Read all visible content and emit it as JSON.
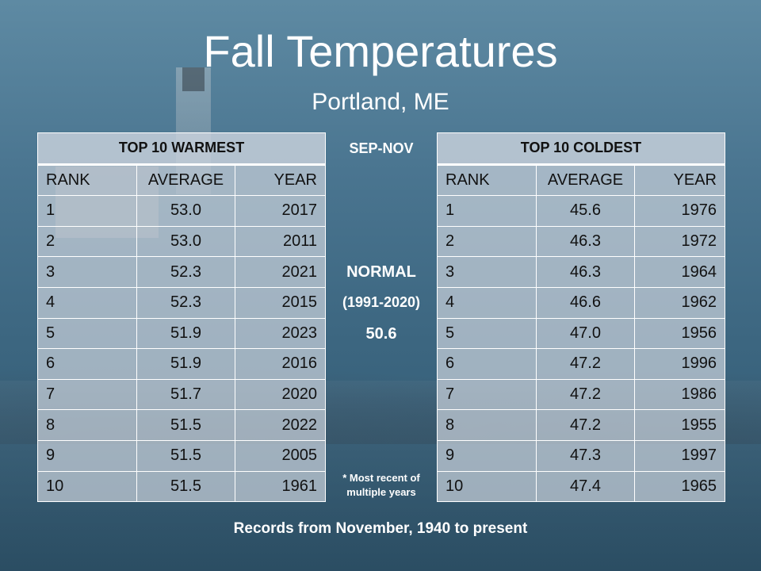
{
  "title": "Fall Temperatures",
  "subtitle": "Portland, ME",
  "season": "SEP-NOV",
  "normal_label": "NORMAL",
  "normal_period": "(1991-2020)",
  "normal_value": "50.6",
  "note": "* Most recent of multiple years",
  "footer": "Records from November, 1940 to present",
  "warmest": {
    "title": "TOP 10 WARMEST",
    "columns": [
      "RANK",
      "AVERAGE",
      "YEAR"
    ],
    "rows": [
      [
        "1",
        "53.0",
        "2017"
      ],
      [
        "2",
        "53.0",
        "2011"
      ],
      [
        "3",
        "52.3",
        "2021"
      ],
      [
        "4",
        "52.3",
        "2015"
      ],
      [
        "5",
        "51.9",
        "2023"
      ],
      [
        "6",
        "51.9",
        "2016"
      ],
      [
        "7",
        "51.7",
        "2020"
      ],
      [
        "8",
        "51.5",
        "2022"
      ],
      [
        "9",
        "51.5",
        "2005"
      ],
      [
        "10",
        "51.5",
        "1961"
      ]
    ]
  },
  "coldest": {
    "title": "TOP 10 COLDEST",
    "columns": [
      "RANK",
      "AVERAGE",
      "YEAR"
    ],
    "rows": [
      [
        "1",
        "45.6",
        "1976"
      ],
      [
        "2",
        "46.3",
        "1972"
      ],
      [
        "3",
        "46.3",
        "1964"
      ],
      [
        "4",
        "46.6",
        "1962"
      ],
      [
        "5",
        "47.0",
        "1956"
      ],
      [
        "6",
        "47.2",
        "1996"
      ],
      [
        "7",
        "47.2",
        "1986"
      ],
      [
        "8",
        "47.2",
        "1955"
      ],
      [
        "9",
        "47.3",
        "1997"
      ],
      [
        "10",
        "47.4",
        "1965"
      ]
    ]
  }
}
